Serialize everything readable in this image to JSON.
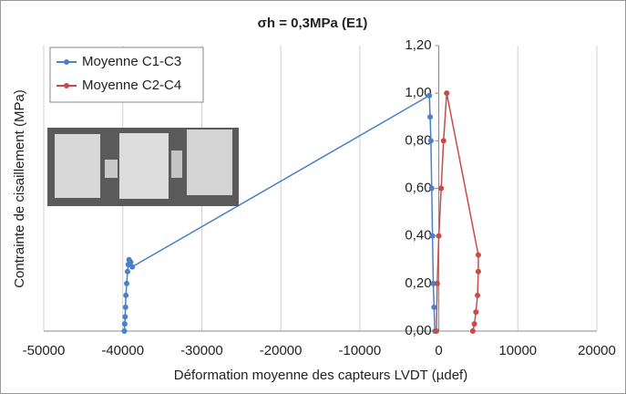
{
  "chart_data": {
    "type": "line",
    "title": "σh = 0,3MPa (E1)",
    "x_label": "Déformation moyenne des capteurs LVDT (µdef)",
    "y_label": "Contrainte de cisaillement (MPa)",
    "xlim": [
      -50000,
      20000
    ],
    "xticks": [
      -50000,
      -40000,
      -30000,
      -20000,
      -10000,
      0,
      10000,
      20000
    ],
    "ylim": [
      0,
      1.2
    ],
    "yticks": [
      {
        "value": 0,
        "label": "0,00"
      },
      {
        "value": 0.2,
        "label": "0,20"
      },
      {
        "value": 0.4,
        "label": "0,40"
      },
      {
        "value": 0.6,
        "label": "0,60"
      },
      {
        "value": 0.8,
        "label": "0,80"
      },
      {
        "value": 1.0,
        "label": "1,00"
      },
      {
        "value": 1.2,
        "label": "1,20"
      }
    ],
    "grid": "x",
    "legend": "top-left",
    "series": [
      {
        "name": "Moyenne C1-C3",
        "color": "#4a7fc9",
        "x": [
          -39800,
          -39750,
          -39700,
          -39650,
          -39600,
          -39500,
          -39400,
          -39300,
          -39200,
          -39000,
          -38800,
          -1200,
          -1100,
          -1000,
          -900,
          -800,
          -700,
          -600,
          -500
        ],
        "values": [
          0,
          0.03,
          0.06,
          0.1,
          0.15,
          0.2,
          0.25,
          0.28,
          0.3,
          0.29,
          0.27,
          0.99,
          0.9,
          0.8,
          0.6,
          0.4,
          0.2,
          0.1,
          0
        ]
      },
      {
        "name": "Moyenne C2-C4",
        "color": "#c94a4a",
        "x": [
          -300,
          -200,
          0,
          300,
          600,
          1000,
          5000,
          5000,
          4900,
          4700,
          4500,
          4300
        ],
        "values": [
          0,
          0.2,
          0.4,
          0.6,
          0.8,
          1.0,
          0.32,
          0.25,
          0.15,
          0.08,
          0.03,
          0
        ]
      }
    ]
  }
}
